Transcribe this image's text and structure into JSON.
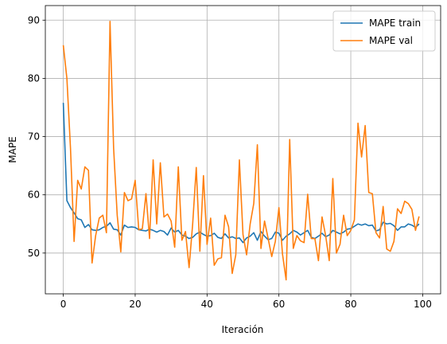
{
  "chart_data": {
    "type": "line",
    "title": "",
    "xlabel": "Iteración",
    "ylabel": "MAPE",
    "xlim": [
      -5,
      105
    ],
    "ylim": [
      43,
      92.5
    ],
    "xticks": [
      0,
      20,
      40,
      60,
      80,
      100
    ],
    "yticks": [
      50,
      60,
      70,
      80,
      90
    ],
    "grid": true,
    "legend": "upper right",
    "series": [
      {
        "name": "MAPE train",
        "color": "#1f77b4",
        "x": [
          0,
          1,
          2,
          3,
          4,
          5,
          6,
          7,
          8,
          9,
          10,
          11,
          12,
          13,
          14,
          15,
          16,
          17,
          18,
          19,
          20,
          21,
          22,
          23,
          24,
          25,
          26,
          27,
          28,
          29,
          30,
          31,
          32,
          33,
          34,
          35,
          36,
          37,
          38,
          39,
          40,
          41,
          42,
          43,
          44,
          45,
          46,
          47,
          48,
          49,
          50,
          51,
          52,
          53,
          54,
          55,
          56,
          57,
          58,
          59,
          60,
          61,
          62,
          63,
          64,
          65,
          66,
          67,
          68,
          69,
          70,
          71,
          72,
          73,
          74,
          75,
          76,
          77,
          78,
          79,
          80,
          81,
          82,
          83,
          84,
          85,
          86,
          87,
          88,
          89,
          90,
          91,
          92,
          93,
          94,
          95,
          96,
          97,
          98,
          99
        ],
        "values": [
          75.8,
          59.0,
          57.8,
          56.9,
          55.9,
          55.7,
          54.4,
          54.9,
          54.0,
          53.9,
          54.0,
          54.4,
          54.6,
          55.2,
          54.1,
          54.0,
          53.1,
          54.8,
          54.4,
          54.5,
          54.4,
          54.0,
          53.9,
          53.8,
          54.1,
          53.9,
          53.6,
          53.9,
          53.7,
          53.1,
          54.3,
          53.6,
          53.9,
          53.1,
          52.9,
          52.5,
          52.7,
          53.3,
          53.6,
          53.2,
          52.9,
          53.0,
          53.4,
          52.7,
          52.5,
          53.3,
          52.6,
          52.8,
          52.5,
          52.6,
          51.8,
          52.6,
          52.9,
          53.5,
          52.2,
          53.7,
          52.9,
          52.3,
          52.5,
          53.6,
          53.4,
          52.2,
          52.9,
          53.3,
          53.9,
          53.6,
          53.1,
          53.5,
          53.9,
          52.7,
          52.5,
          52.9,
          53.4,
          52.8,
          53.1,
          53.9,
          53.6,
          53.3,
          53.6,
          54.1,
          54.2,
          54.6,
          55.0,
          54.8,
          55.0,
          54.7,
          54.8,
          53.8,
          54.0,
          55.3,
          55.0,
          55.1,
          54.7,
          53.9,
          54.5,
          54.5,
          55.0,
          54.8,
          54.4,
          55.0
        ]
      },
      {
        "name": "MAPE val",
        "color": "#ff7f0e",
        "x": [
          0,
          1,
          2,
          3,
          4,
          5,
          6,
          7,
          8,
          9,
          10,
          11,
          12,
          13,
          14,
          15,
          16,
          17,
          18,
          19,
          20,
          21,
          22,
          23,
          24,
          25,
          26,
          27,
          28,
          29,
          30,
          31,
          32,
          33,
          34,
          35,
          36,
          37,
          38,
          39,
          40,
          41,
          42,
          43,
          44,
          45,
          46,
          47,
          48,
          49,
          50,
          51,
          52,
          53,
          54,
          55,
          56,
          57,
          58,
          59,
          60,
          61,
          62,
          63,
          64,
          65,
          66,
          67,
          68,
          69,
          70,
          71,
          72,
          73,
          74,
          75,
          76,
          77,
          78,
          79,
          80,
          81,
          82,
          83,
          84,
          85,
          86,
          87,
          88,
          89,
          90,
          91,
          92,
          93,
          94,
          95,
          96,
          97,
          98,
          99
        ],
        "values": [
          85.7,
          80.0,
          68.0,
          52.0,
          62.5,
          61.0,
          64.8,
          64.2,
          48.3,
          53.0,
          56.0,
          56.5,
          53.5,
          89.8,
          68.0,
          56.5,
          50.2,
          60.4,
          59.0,
          59.3,
          62.5,
          54.0,
          54.2,
          60.2,
          52.5,
          66.0,
          55.0,
          65.5,
          56.2,
          56.7,
          55.5,
          51.0,
          64.8,
          52.2,
          53.7,
          47.5,
          55.0,
          64.7,
          50.3,
          63.3,
          51.5,
          56.0,
          47.9,
          49.0,
          49.2,
          56.5,
          54.5,
          46.5,
          49.7,
          66.0,
          53.2,
          49.7,
          55.0,
          58.5,
          68.6,
          50.8,
          55.5,
          52.5,
          49.4,
          52.0,
          57.8,
          49.8,
          45.4,
          69.5,
          50.8,
          53.0,
          52.1,
          51.8,
          60.1,
          52.5,
          52.5,
          48.7,
          56.2,
          53.0,
          48.7,
          62.8,
          50.0,
          51.5,
          56.5,
          53.0,
          53.9,
          55.7,
          72.3,
          66.5,
          71.9,
          60.4,
          60.2,
          53.5,
          52.6,
          58.0,
          50.7,
          50.3,
          52.0,
          57.6,
          56.8,
          58.9,
          58.5,
          57.5,
          53.9,
          56.3
        ]
      }
    ]
  }
}
